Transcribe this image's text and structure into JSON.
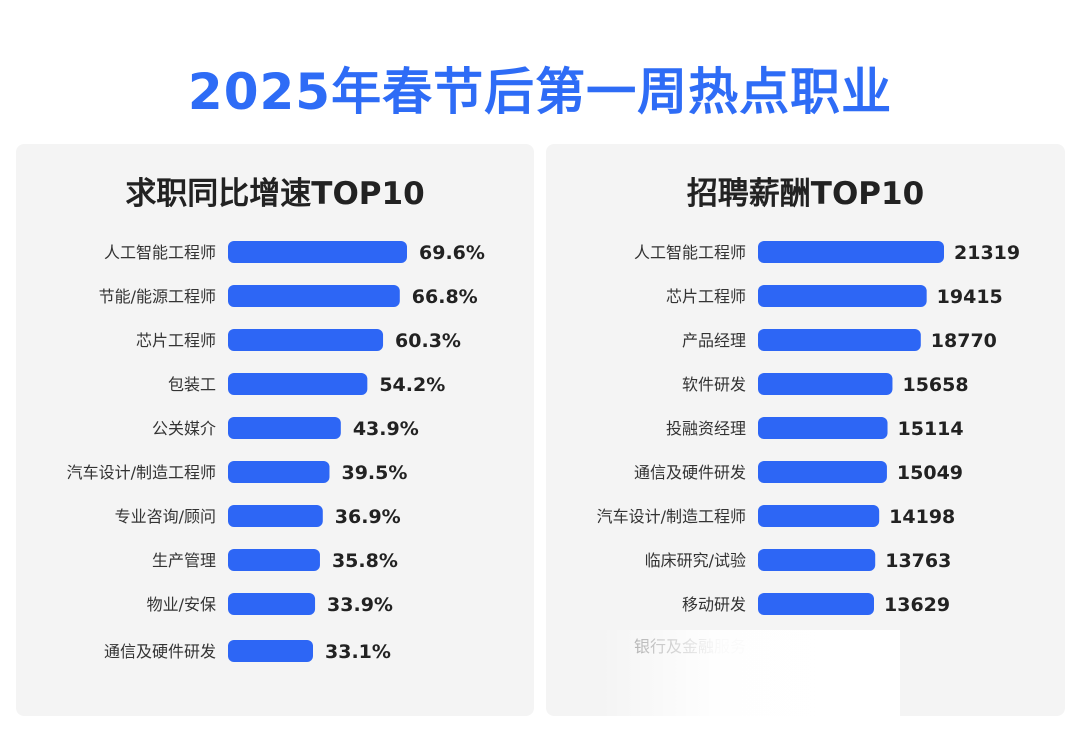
{
  "title": "2025年春节后第一周热点职业",
  "colors": {
    "accent": "#2e6cf6",
    "bar": "#2d66f5",
    "panel_bg": "#f4f4f4",
    "label": "#333333",
    "value": "#222222"
  },
  "chart_data": [
    {
      "type": "bar",
      "orientation": "horizontal",
      "title": "求职同比增速TOP10",
      "categories": [
        "人工智能工程师",
        "节能/能源工程师",
        "芯片工程师",
        "包装工",
        "公关媒介",
        "汽车设计/制造工程师",
        "专业咨询/顾问",
        "生产管理",
        "物业/安保",
        "通信及硬件研发"
      ],
      "values": [
        69.6,
        66.8,
        60.3,
        54.2,
        43.9,
        39.5,
        36.9,
        35.8,
        33.9,
        33.1
      ],
      "value_labels": [
        "69.6%",
        "66.8%",
        "60.3%",
        "54.2%",
        "43.9%",
        "39.5%",
        "36.9%",
        "35.8%",
        "33.9%",
        "33.1%"
      ],
      "unit": "%",
      "xlim": [
        0,
        69.6
      ]
    },
    {
      "type": "bar",
      "orientation": "horizontal",
      "title": "招聘薪酬TOP10",
      "categories": [
        "人工智能工程师",
        "芯片工程师",
        "产品经理",
        "软件研发",
        "投融资经理",
        "通信及硬件研发",
        "汽车设计/制造工程师",
        "临床研究/试验",
        "移动研发",
        "银行及金融服务"
      ],
      "values": [
        21319,
        19415,
        18770,
        15658,
        15114,
        15049,
        14198,
        13763,
        13629,
        null
      ],
      "value_labels": [
        "21319",
        "19415",
        "18770",
        "15658",
        "15114",
        "15049",
        "14198",
        "13763",
        "13629",
        ""
      ],
      "xlim": [
        0,
        21319
      ]
    }
  ]
}
